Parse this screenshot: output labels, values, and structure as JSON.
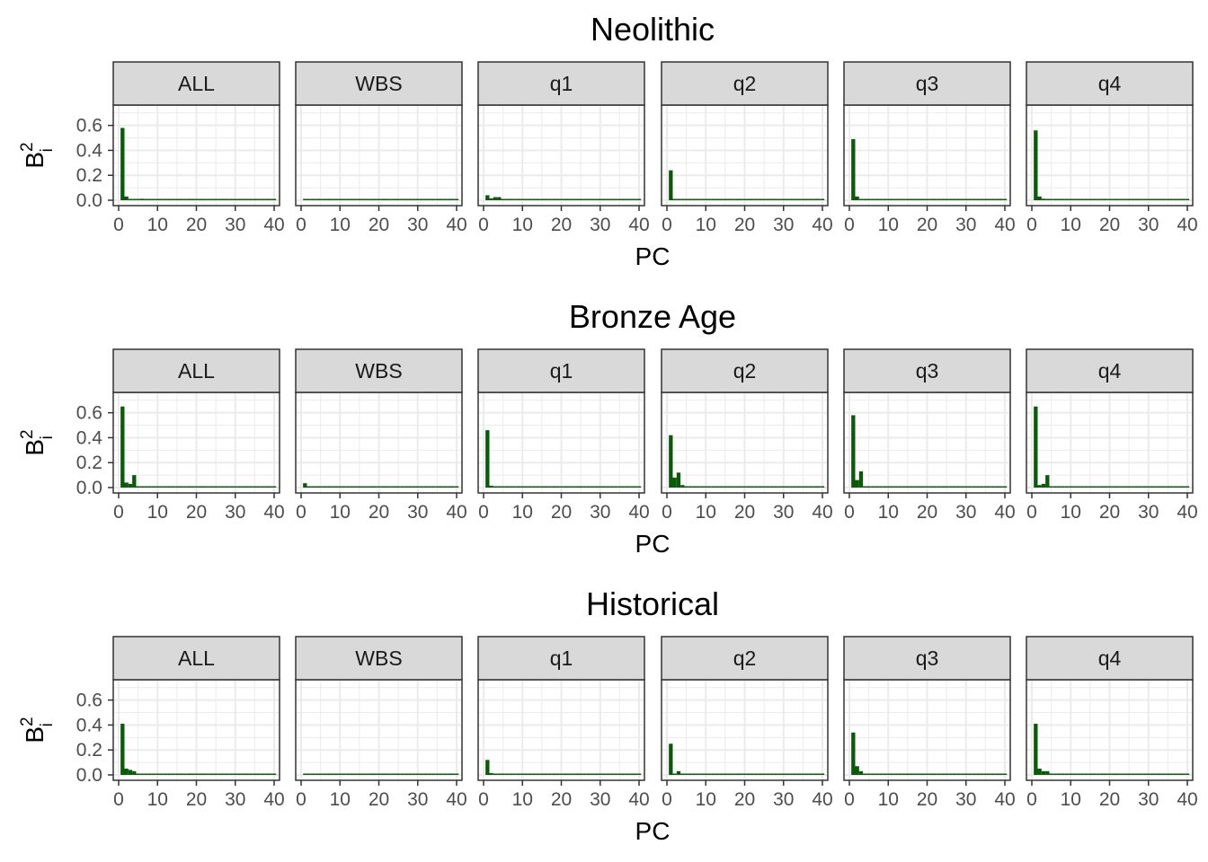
{
  "colors": {
    "bar": "#0b5a0b",
    "strip_fill": "#d9d9d9",
    "strip_border": "#333333",
    "panel_border": "#333333",
    "grid": "#ebebeb",
    "tick_text": "#4d4d4d"
  },
  "chart_data": [
    {
      "type": "bar",
      "title": "Neolithic",
      "xlabel": "PC",
      "ylabel": "B",
      "ylabel_sup": "2",
      "ylabel_sub": "i",
      "xlim": [
        0,
        40
      ],
      "ylim": [
        0,
        0.72
      ],
      "xticks": [
        "0",
        "10",
        "20",
        "30",
        "40"
      ],
      "yticks": [
        "0.0",
        "0.2",
        "0.4",
        "0.6"
      ],
      "grid": true,
      "facets": [
        {
          "label": "ALL",
          "x": [
            1,
            2,
            3,
            4,
            5,
            6,
            7,
            8,
            9,
            10
          ],
          "values": [
            0.58,
            0.03,
            0.01,
            0.008,
            0.006,
            0.012,
            0.01,
            0.006,
            0.004,
            0.004
          ]
        },
        {
          "label": "WBS",
          "x": [
            1,
            2,
            3,
            4,
            5,
            6,
            7,
            8,
            9,
            10
          ],
          "values": [
            0.008,
            0.006,
            0.004,
            0.004,
            0.003,
            0.003,
            0.003,
            0.003,
            0.003,
            0.003
          ]
        },
        {
          "label": "q1",
          "x": [
            1,
            2,
            3,
            4,
            5,
            6,
            7,
            8,
            9,
            10
          ],
          "values": [
            0.04,
            0.015,
            0.025,
            0.025,
            0.006,
            0.005,
            0.004,
            0.004,
            0.003,
            0.003
          ]
        },
        {
          "label": "q2",
          "x": [
            1,
            2,
            3,
            4,
            5,
            6,
            7,
            8,
            9,
            10
          ],
          "values": [
            0.24,
            0.01,
            0.008,
            0.008,
            0.006,
            0.01,
            0.008,
            0.005,
            0.004,
            0.004
          ]
        },
        {
          "label": "q3",
          "x": [
            1,
            2,
            3,
            4,
            5,
            6,
            7,
            8,
            9,
            10
          ],
          "values": [
            0.49,
            0.03,
            0.01,
            0.008,
            0.006,
            0.005,
            0.005,
            0.004,
            0.004,
            0.004
          ]
        },
        {
          "label": "q4",
          "x": [
            1,
            2,
            3,
            4,
            5,
            6,
            7,
            8,
            9,
            10
          ],
          "values": [
            0.56,
            0.03,
            0.012,
            0.008,
            0.006,
            0.005,
            0.01,
            0.008,
            0.004,
            0.004
          ]
        }
      ]
    },
    {
      "type": "bar",
      "title": "Bronze Age",
      "xlabel": "PC",
      "ylabel": "B",
      "ylabel_sup": "2",
      "ylabel_sub": "i",
      "xlim": [
        0,
        40
      ],
      "ylim": [
        0,
        0.72
      ],
      "xticks": [
        "0",
        "10",
        "20",
        "30",
        "40"
      ],
      "yticks": [
        "0.0",
        "0.2",
        "0.4",
        "0.6"
      ],
      "grid": true,
      "facets": [
        {
          "label": "ALL",
          "x": [
            1,
            2,
            3,
            4,
            5,
            6,
            7,
            8,
            9,
            10
          ],
          "values": [
            0.65,
            0.04,
            0.03,
            0.1,
            0.01,
            0.008,
            0.006,
            0.005,
            0.004,
            0.004
          ]
        },
        {
          "label": "WBS",
          "x": [
            1,
            2,
            3,
            4,
            5,
            6,
            7,
            8,
            9,
            10
          ],
          "values": [
            0.035,
            0.01,
            0.008,
            0.006,
            0.005,
            0.004,
            0.004,
            0.003,
            0.003,
            0.003
          ]
        },
        {
          "label": "q1",
          "x": [
            1,
            2,
            3,
            4,
            5,
            6,
            7,
            8,
            9,
            10
          ],
          "values": [
            0.46,
            0.015,
            0.01,
            0.008,
            0.006,
            0.005,
            0.004,
            0.004,
            0.003,
            0.003
          ]
        },
        {
          "label": "q2",
          "x": [
            1,
            2,
            3,
            4,
            5,
            6,
            7,
            8,
            9,
            10
          ],
          "values": [
            0.42,
            0.08,
            0.12,
            0.02,
            0.01,
            0.008,
            0.006,
            0.005,
            0.004,
            0.004
          ]
        },
        {
          "label": "q3",
          "x": [
            1,
            2,
            3,
            4,
            5,
            6,
            7,
            8,
            9,
            10
          ],
          "values": [
            0.58,
            0.06,
            0.13,
            0.01,
            0.008,
            0.006,
            0.005,
            0.004,
            0.004,
            0.004
          ]
        },
        {
          "label": "q4",
          "x": [
            1,
            2,
            3,
            4,
            5,
            6,
            7,
            8,
            9,
            10
          ],
          "values": [
            0.65,
            0.02,
            0.03,
            0.1,
            0.01,
            0.008,
            0.006,
            0.005,
            0.004,
            0.004
          ]
        }
      ]
    },
    {
      "type": "bar",
      "title": "Historical",
      "xlabel": "PC",
      "ylabel": "B",
      "ylabel_sup": "2",
      "ylabel_sub": "i",
      "xlim": [
        0,
        40
      ],
      "ylim": [
        0,
        0.72
      ],
      "xticks": [
        "0",
        "10",
        "20",
        "30",
        "40"
      ],
      "yticks": [
        "0.0",
        "0.2",
        "0.4",
        "0.6"
      ],
      "grid": true,
      "facets": [
        {
          "label": "ALL",
          "x": [
            1,
            2,
            3,
            4,
            5,
            6,
            7,
            8,
            9,
            10
          ],
          "values": [
            0.41,
            0.05,
            0.04,
            0.03,
            0.01,
            0.008,
            0.006,
            0.005,
            0.004,
            0.004
          ]
        },
        {
          "label": "WBS",
          "x": [
            1,
            2,
            3,
            4,
            5,
            6,
            7,
            8,
            9,
            10
          ],
          "values": [
            0.008,
            0.006,
            0.005,
            0.004,
            0.004,
            0.003,
            0.003,
            0.003,
            0.003,
            0.003
          ]
        },
        {
          "label": "q1",
          "x": [
            1,
            2,
            3,
            4,
            5,
            6,
            7,
            8,
            9,
            10
          ],
          "values": [
            0.12,
            0.015,
            0.01,
            0.008,
            0.006,
            0.005,
            0.004,
            0.004,
            0.003,
            0.003
          ]
        },
        {
          "label": "q2",
          "x": [
            1,
            2,
            3,
            4,
            5,
            6,
            7,
            8,
            9,
            10
          ],
          "values": [
            0.25,
            0.01,
            0.03,
            0.01,
            0.008,
            0.006,
            0.005,
            0.004,
            0.004,
            0.004
          ]
        },
        {
          "label": "q3",
          "x": [
            1,
            2,
            3,
            4,
            5,
            6,
            7,
            8,
            9,
            10
          ],
          "values": [
            0.34,
            0.07,
            0.03,
            0.01,
            0.008,
            0.006,
            0.005,
            0.004,
            0.004,
            0.004
          ]
        },
        {
          "label": "q4",
          "x": [
            1,
            2,
            3,
            4,
            5,
            6,
            7,
            8,
            9,
            10
          ],
          "values": [
            0.41,
            0.05,
            0.03,
            0.03,
            0.01,
            0.008,
            0.006,
            0.005,
            0.004,
            0.004
          ]
        }
      ]
    }
  ]
}
